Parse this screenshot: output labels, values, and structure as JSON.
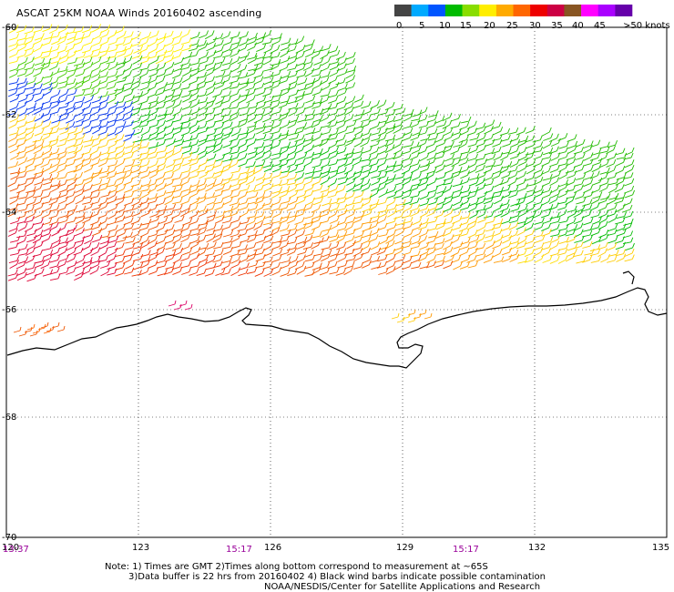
{
  "title": "ASCAT 25KM NOAA Winds 20160402 ascending",
  "legend": {
    "colors": [
      "#444444",
      "#00aaff",
      "#0055ff",
      "#00bb00",
      "#88dd00",
      "#ffee00",
      "#ffaa00",
      "#ff6600",
      "#ee0000",
      "#cc0044",
      "#885522",
      "#ff00ff",
      "#aa00ff",
      "#6600aa"
    ],
    "labels": [
      "0",
      "5",
      "10",
      "15",
      "20",
      "25",
      "30",
      "35",
      "40",
      "45",
      ">50 knots"
    ]
  },
  "latitudes": [
    "-60",
    "-62",
    "-64",
    "-66",
    "-68",
    "-70"
  ],
  "longitudes": [
    "120",
    "123",
    "126",
    "129",
    "132",
    "135"
  ],
  "times": [
    "13:37",
    "15:17",
    "15:17"
  ],
  "notes": [
    "Note: 1) Times are GMT 2)Times along bottom correspond to measurement at ~65S",
    "3)Data buffer is 22 hrs from 20160402 4) Black wind barbs indicate possible contamination",
    "NOAA/NESDIS/Center for Satellite Applications and Research"
  ],
  "chart_data": {
    "type": "wind-barb-map",
    "lon_range": [
      120,
      135
    ],
    "lat_range": [
      -70,
      -60
    ],
    "colors": {
      "coast": "#000000",
      "grid": "#000000"
    }
  }
}
